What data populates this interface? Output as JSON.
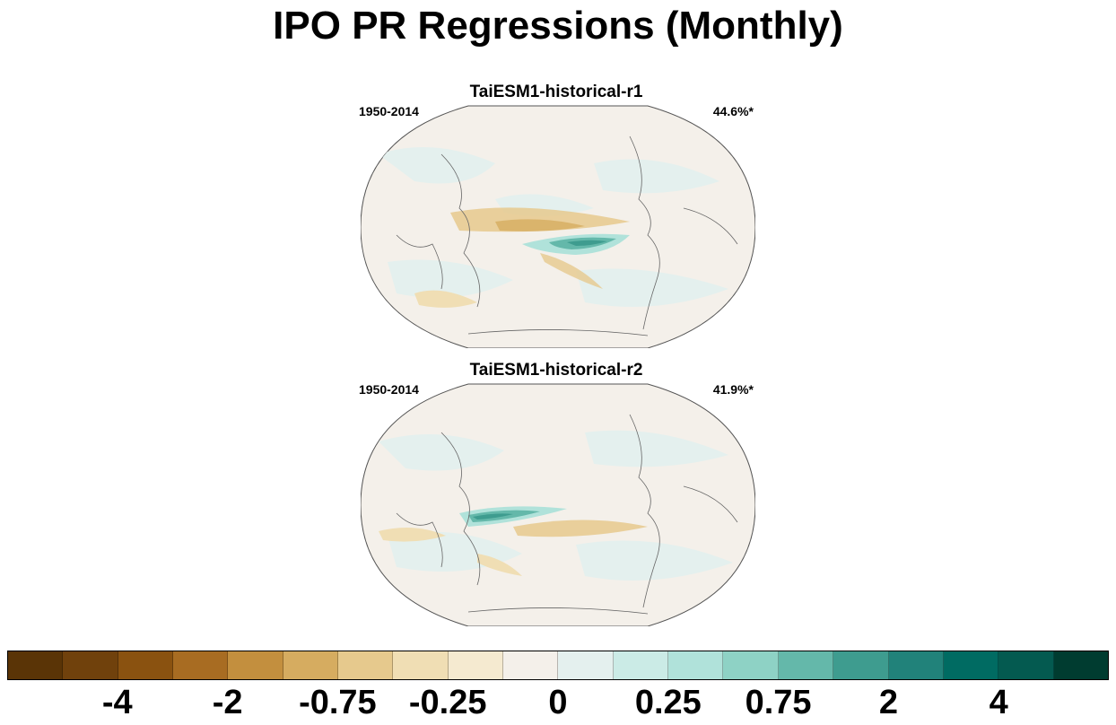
{
  "title": "IPO PR Regressions (Monthly)",
  "panels": [
    {
      "title": "TaiESM1-historical-r1",
      "period": "1950-2014",
      "variance": "44.6%*"
    },
    {
      "title": "TaiESM1-historical-r2",
      "period": "1950-2014",
      "variance": "41.9%*"
    }
  ],
  "colorbar": {
    "colors": [
      "#5a3406",
      "#70410c",
      "#8a5210",
      "#a86c22",
      "#c38f3e",
      "#d6ac60",
      "#e6c98d",
      "#f0deb4",
      "#f5ead0",
      "#f4f0ea",
      "#e4f0ee",
      "#cbebe6",
      "#b0e2da",
      "#8ed2c5",
      "#64b8aa",
      "#3e9c8f",
      "#21827a",
      "#006b62",
      "#045a50",
      "#003c30"
    ],
    "labels": [
      "-4",
      "-2",
      "-0.75",
      "-0.25",
      "0",
      "0.25",
      "0.75",
      "2",
      "4"
    ],
    "label_boundary_index": [
      2,
      4,
      6,
      8,
      10,
      12,
      14,
      16,
      18
    ]
  }
}
